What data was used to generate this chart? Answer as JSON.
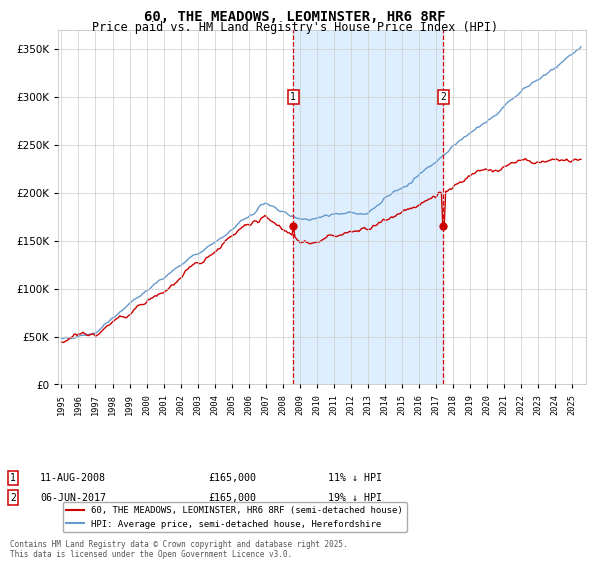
{
  "title": "60, THE MEADOWS, LEOMINSTER, HR6 8RF",
  "subtitle": "Price paid vs. HM Land Registry's House Price Index (HPI)",
  "ylim": [
    0,
    370000
  ],
  "yticks": [
    0,
    50000,
    100000,
    150000,
    200000,
    250000,
    300000,
    350000
  ],
  "sale1_x": 2008.61,
  "sale1_label": "1",
  "sale1_price": 165000,
  "sale1_text": "11-AUG-2008",
  "sale1_pct": "11% ↓ HPI",
  "sale2_x": 2017.43,
  "sale2_label": "2",
  "sale2_price": 165000,
  "sale2_text": "06-JUN-2017",
  "sale2_pct": "19% ↓ HPI",
  "legend_line1": "60, THE MEADOWS, LEOMINSTER, HR6 8RF (semi-detached house)",
  "legend_line2": "HPI: Average price, semi-detached house, Herefordshire",
  "footer": "Contains HM Land Registry data © Crown copyright and database right 2025.\nThis data is licensed under the Open Government Licence v3.0.",
  "line_color_red": "#cc0000",
  "line_color_blue": "#6699cc",
  "shade_color": "#ddeeff",
  "grid_color": "#cccccc",
  "bg_color": "#ffffff"
}
